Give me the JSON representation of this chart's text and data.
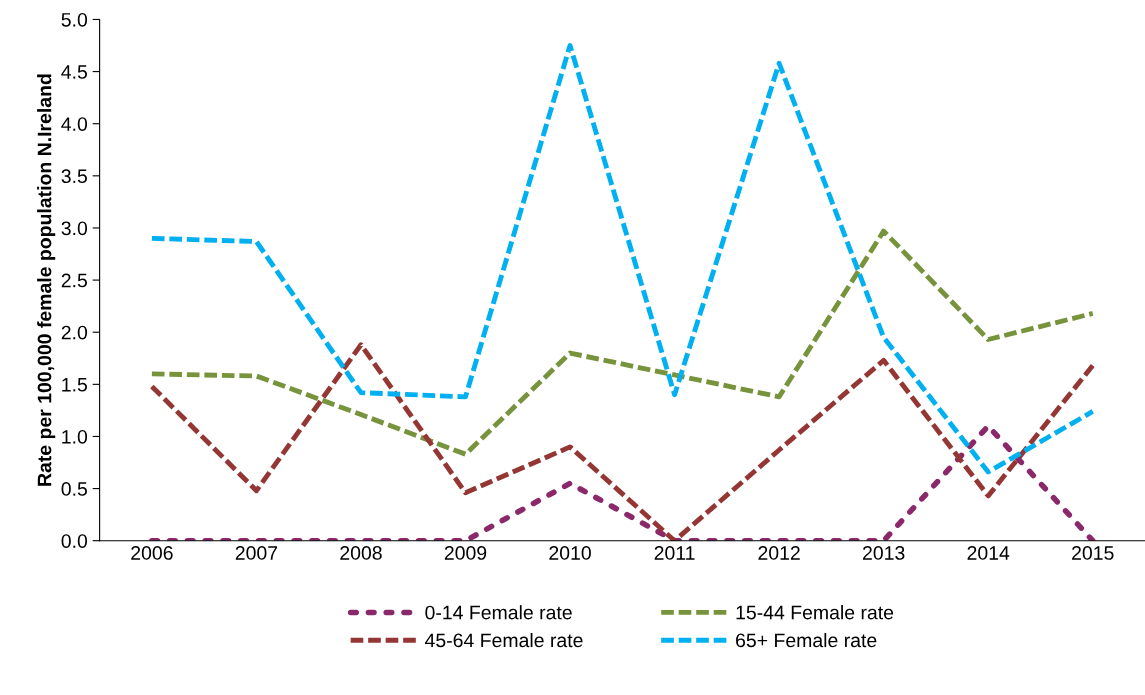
{
  "chart_data": {
    "type": "line",
    "ylabel": "Rate per 100,000 female population N.Ireland",
    "categories": [
      "2006",
      "2007",
      "2008",
      "2009",
      "2010",
      "2011",
      "2012",
      "2013",
      "2014",
      "2015"
    ],
    "series": [
      {
        "name": "0-14 Female rate",
        "color": "#8b2869",
        "line_style": "dotted",
        "values": [
          0,
          0,
          0,
          0,
          0.55,
          0,
          0,
          0,
          1.1,
          0
        ]
      },
      {
        "name": "15-44 Female rate",
        "color": "#77933c",
        "line_style": "dashed",
        "values": [
          1.6,
          1.58,
          1.21,
          0.83,
          1.8,
          1.59,
          1.38,
          2.97,
          1.93,
          2.18
        ]
      },
      {
        "name": "45-64 Female rate",
        "color": "#943634",
        "line_style": "dashed",
        "values": [
          1.48,
          0.48,
          1.88,
          0.46,
          0.9,
          0,
          0.87,
          1.73,
          0.43,
          1.68
        ]
      },
      {
        "name": "65+ Female rate",
        "color": "#00b0f0",
        "line_style": "dashed",
        "values": [
          2.9,
          2.87,
          1.42,
          1.38,
          4.75,
          1.4,
          4.58,
          1.95,
          0.66,
          1.24
        ]
      }
    ],
    "ylim": [
      0,
      5
    ],
    "yticks": [
      {
        "value": 0,
        "label": "0.0"
      },
      {
        "value": 0.5,
        "label": "0.5"
      },
      {
        "value": 1,
        "label": "1.0"
      },
      {
        "value": 1.5,
        "label": "1.5"
      },
      {
        "value": 2,
        "label": "2.0"
      },
      {
        "value": 2.5,
        "label": "2.5"
      },
      {
        "value": 3,
        "label": "3.0"
      },
      {
        "value": 3.5,
        "label": "3.5"
      },
      {
        "value": 4,
        "label": "4.0"
      },
      {
        "value": 4.5,
        "label": "4.5"
      },
      {
        "value": 5,
        "label": "5.0"
      }
    ],
    "grid": false,
    "legend": "bottom",
    "marker": "none"
  }
}
